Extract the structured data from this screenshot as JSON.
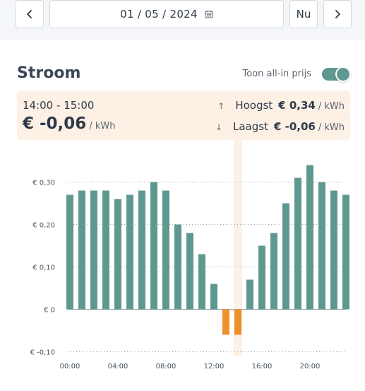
{
  "header": {
    "date_value": "01 / 05 / 2024",
    "today_label": "Nu",
    "prev_icon": "chevron-left-icon",
    "next_icon": "chevron-right-icon",
    "calendar_icon": "calendar-icon"
  },
  "section": {
    "title": "Stroom",
    "toggle_label": "Toon all-in prijs",
    "toggle_on": true
  },
  "info": {
    "time_range": "14:00 - 15:00",
    "current_price": "€ -0,06",
    "unit": "/ kWh",
    "highest_label": "Hoogst",
    "highest_value": "€ 0,34",
    "lowest_label": "Laagst",
    "lowest_value": "€ -0,06"
  },
  "colors": {
    "bar_positive": "#5f9890",
    "bar_negative": "#f0902a",
    "highlight": "#fdf0e5"
  },
  "chart_data": {
    "type": "bar",
    "categories": [
      "00:00",
      "01:00",
      "02:00",
      "03:00",
      "04:00",
      "05:00",
      "06:00",
      "07:00",
      "08:00",
      "09:00",
      "10:00",
      "11:00",
      "12:00",
      "13:00",
      "14:00",
      "15:00",
      "16:00",
      "17:00",
      "18:00",
      "19:00",
      "20:00",
      "21:00",
      "22:00",
      "23:00"
    ],
    "values": [
      0.27,
      0.28,
      0.28,
      0.28,
      0.26,
      0.27,
      0.28,
      0.3,
      0.28,
      0.2,
      0.18,
      0.13,
      0.06,
      -0.06,
      -0.06,
      0.07,
      0.15,
      0.18,
      0.25,
      0.31,
      0.34,
      0.3,
      0.28,
      0.27
    ],
    "x_tick_labels": [
      "00:00",
      "04:00",
      "08:00",
      "12:00",
      "16:00",
      "20:00"
    ],
    "y_tick_labels": [
      "€ 0,30",
      "€ 0,20",
      "€ 0,10",
      "€ 0",
      "€ -0,10"
    ],
    "y_ticks": [
      0.3,
      0.2,
      0.1,
      0,
      -0.1
    ],
    "ylim": [
      -0.1,
      0.3
    ],
    "highlighted_category": "14:00",
    "grid": true
  }
}
